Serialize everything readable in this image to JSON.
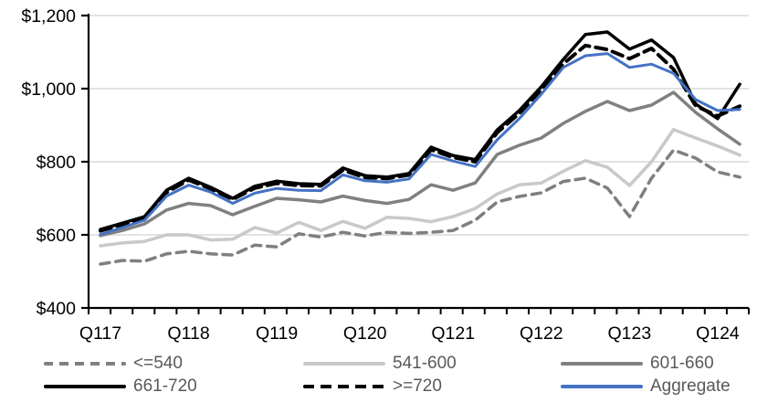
{
  "chart_data": {
    "type": "line",
    "title": "",
    "x_tick_labels": [
      "Q117",
      "Q118",
      "Q119",
      "Q120",
      "Q121",
      "Q122",
      "Q123",
      "Q124"
    ],
    "y_tick_labels": [
      "$400",
      "$600",
      "$800",
      "$1,000",
      "$1,200"
    ],
    "y_ticks": [
      400,
      600,
      800,
      1000,
      1200
    ],
    "ylim": [
      400,
      1200
    ],
    "n_points": 30,
    "grid": true,
    "legend_position": "bottom",
    "gridline_color": "#d9d9d9",
    "axis_color": "#000000",
    "axis_label_color": "#000000",
    "legend_text_color": "#595959",
    "series": [
      {
        "name": "<=540",
        "color": "#7f7f7f",
        "dash": "10 7",
        "width": 3.5,
        "values": [
          520,
          530,
          528,
          548,
          555,
          548,
          545,
          572,
          567,
          603,
          594,
          607,
          597,
          607,
          604,
          607,
          612,
          640,
          690,
          705,
          715,
          746,
          755,
          728,
          650,
          755,
          832,
          810,
          772,
          758
        ]
      },
      {
        "name": "541-600",
        "color": "#c9c9c9",
        "dash": "",
        "width": 3.5,
        "values": [
          570,
          578,
          582,
          600,
          600,
          586,
          588,
          620,
          605,
          634,
          612,
          637,
          618,
          648,
          645,
          636,
          650,
          672,
          712,
          737,
          742,
          774,
          803,
          785,
          735,
          800,
          888,
          865,
          843,
          818
        ]
      },
      {
        "name": "601-660",
        "color": "#808080",
        "dash": "",
        "width": 3.5,
        "values": [
          598,
          612,
          630,
          668,
          686,
          680,
          655,
          678,
          700,
          696,
          690,
          706,
          694,
          686,
          697,
          737,
          722,
          742,
          820,
          845,
          865,
          905,
          938,
          965,
          940,
          955,
          990,
          935,
          890,
          848
        ]
      },
      {
        "name": "661-720",
        "color": "#000000",
        "dash": "",
        "width": 3.5,
        "values": [
          615,
          632,
          650,
          722,
          755,
          730,
          700,
          733,
          747,
          740,
          738,
          783,
          762,
          758,
          768,
          840,
          817,
          806,
          887,
          940,
          1005,
          1080,
          1148,
          1155,
          1108,
          1133,
          1085,
          958,
          918,
          1012
        ]
      },
      {
        "name": ">=720",
        "color": "#000000",
        "dash": "12 7",
        "width": 4,
        "values": [
          611,
          628,
          646,
          716,
          750,
          726,
          697,
          728,
          741,
          735,
          734,
          777,
          757,
          754,
          764,
          833,
          812,
          800,
          880,
          932,
          997,
          1068,
          1118,
          1107,
          1082,
          1110,
          1053,
          953,
          925,
          952
        ]
      },
      {
        "name": "Aggregate",
        "color": "#4472c4",
        "dash": "",
        "width": 3,
        "values": [
          601,
          620,
          640,
          706,
          736,
          717,
          686,
          714,
          727,
          722,
          721,
          764,
          748,
          744,
          753,
          820,
          802,
          787,
          860,
          918,
          985,
          1058,
          1090,
          1096,
          1058,
          1067,
          1042,
          970,
          940,
          943
        ]
      }
    ]
  }
}
